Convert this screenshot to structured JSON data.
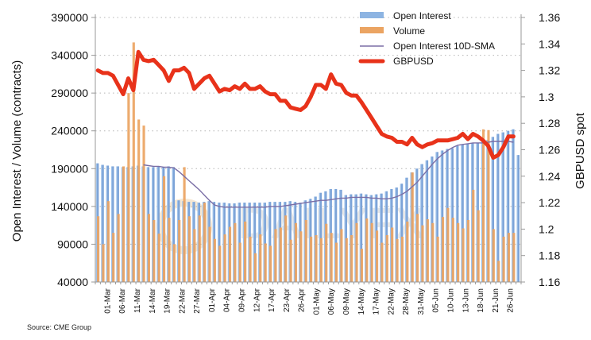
{
  "chart_data": {
    "type": "bar",
    "title": "",
    "source": "Source: CME Group",
    "ylabel": "Open Interest / Volume (contracts)",
    "y2label": "GBPUSD spot",
    "ylim": [
      40000,
      390000
    ],
    "y2lim": [
      1.16,
      1.36
    ],
    "yticks": [
      "390000",
      "340000",
      "290000",
      "240000",
      "190000",
      "140000",
      "90000",
      "40000"
    ],
    "y2ticks": [
      "1.36",
      "1.34",
      "1.32",
      "1.3",
      "1.28",
      "1.26",
      "1.24",
      "1.22",
      "1.2",
      "1.18",
      "1.16"
    ],
    "xtick_labels": [
      "01-Mar",
      "06-Mar",
      "11-Mar",
      "14-Mar",
      "19-Mar",
      "22-Mar",
      "27-Mar",
      "01-Apr",
      "04-Apr",
      "09-Apr",
      "12-Apr",
      "17-Apr",
      "23-Apr",
      "26-Apr",
      "01-May",
      "06-May",
      "09-May",
      "14-May",
      "17-May",
      "22-May",
      "28-May",
      "31-May",
      "05-Jun",
      "10-Jun",
      "13-Jun",
      "18-Jun",
      "21-Jun",
      "26-Jun"
    ],
    "total_slots": 84,
    "grid": true,
    "legend_position": "top-center",
    "legend": [
      {
        "name": "Open Interest",
        "kind": "bar",
        "color": "#8db4e2"
      },
      {
        "name": "Volume",
        "kind": "bar",
        "color": "#eba462"
      },
      {
        "name": "Open Interest 10D-SMA",
        "kind": "line",
        "color": "#7b6fa6"
      },
      {
        "name": "GBPUSD",
        "kind": "thick-line",
        "color": "#e8321a"
      }
    ],
    "series": [
      {
        "name": "Open Interest",
        "axis": "left",
        "values": [
          197000,
          195000,
          194000,
          193000,
          193000,
          192000,
          192000,
          193000,
          194000,
          193000,
          192000,
          192000,
          193000,
          192000,
          193000,
          192000,
          148000,
          147000,
          146000,
          146000,
          145000,
          146000,
          147000,
          146000,
          145000,
          145000,
          144000,
          144000,
          145000,
          145000,
          145000,
          145000,
          145000,
          145000,
          146000,
          146000,
          146000,
          146000,
          147000,
          146000,
          145000,
          148000,
          150000,
          153000,
          158000,
          160000,
          163000,
          163000,
          162000,
          155000,
          156000,
          156000,
          157000,
          156000,
          155000,
          156000,
          157000,
          160000,
          163000,
          165000,
          170000,
          178000,
          185000,
          190000,
          196000,
          201000,
          206000,
          212000,
          214000,
          216000,
          217000,
          220000,
          222000,
          223000,
          224000,
          224000,
          226000,
          228000,
          232000,
          236000,
          238000,
          240000,
          242000,
          208000
        ]
      },
      {
        "name": "Volume",
        "axis": "left",
        "values": [
          127000,
          90000,
          147000,
          105000,
          130000,
          193000,
          290000,
          357000,
          255000,
          247000,
          130000,
          122000,
          104000,
          180000,
          125000,
          90000,
          122000,
          192000,
          127000,
          110000,
          128000,
          145000,
          113000,
          97000,
          88000,
          103000,
          113000,
          118000,
          92000,
          120000,
          100000,
          78000,
          103000,
          91000,
          88000,
          110000,
          112000,
          128000,
          96000,
          118000,
          107000,
          122000,
          100000,
          102000,
          98000,
          117000,
          105000,
          92000,
          110000,
          98000,
          102000,
          118000,
          84000,
          124000,
          118000,
          108000,
          92000,
          102000,
          112000,
          97000,
          100000,
          120000,
          185000,
          130000,
          115000,
          123000,
          118000,
          100000,
          126000,
          138000,
          125000,
          118000,
          111000,
          122000,
          162000,
          135000,
          242000,
          241000,
          110000,
          68000,
          100000,
          105000,
          105000,
          0
        ]
      },
      {
        "name": "Open Interest 10D-SMA",
        "axis": "left",
        "values": [
          null,
          null,
          null,
          null,
          null,
          null,
          null,
          null,
          null,
          195000,
          194000,
          193000,
          193000,
          192000,
          192000,
          191000,
          186000,
          180000,
          174000,
          168000,
          162000,
          155000,
          148000,
          142000,
          140000,
          139000,
          139000,
          139000,
          139000,
          139000,
          139000,
          139000,
          139000,
          139000,
          140000,
          140000,
          140000,
          141000,
          142000,
          143000,
          144000,
          145000,
          146000,
          147000,
          148000,
          148000,
          149000,
          150000,
          151000,
          151000,
          152000,
          152000,
          152000,
          152000,
          151000,
          151000,
          150000,
          150000,
          151000,
          153000,
          156000,
          160000,
          166000,
          172000,
          180000,
          188000,
          196000,
          203000,
          209000,
          214000,
          218000,
          221000,
          222000,
          223000,
          224000,
          224000,
          224000,
          225000,
          226000,
          226000,
          226000,
          226000,
          225000,
          null
        ]
      },
      {
        "name": "GBPUSD",
        "axis": "right",
        "values": [
          1.32,
          1.318,
          1.318,
          1.316,
          1.309,
          1.302,
          1.314,
          1.305,
          1.334,
          1.328,
          1.327,
          1.328,
          1.324,
          1.32,
          1.312,
          1.32,
          1.32,
          1.322,
          1.318,
          1.306,
          1.31,
          1.314,
          1.316,
          1.31,
          1.304,
          1.306,
          1.305,
          1.308,
          1.306,
          1.31,
          1.306,
          1.306,
          1.308,
          1.304,
          1.302,
          1.302,
          1.297,
          1.297,
          1.292,
          1.291,
          1.29,
          1.293,
          1.3,
          1.309,
          1.309,
          1.306,
          1.317,
          1.31,
          1.309,
          1.303,
          1.301,
          1.301,
          1.296,
          1.29,
          1.284,
          1.278,
          1.272,
          1.27,
          1.269,
          1.266,
          1.266,
          1.264,
          1.269,
          1.264,
          1.262,
          1.264,
          1.265,
          1.267,
          1.267,
          1.267,
          1.268,
          1.269,
          1.272,
          1.268,
          1.272,
          1.27,
          1.267,
          1.263,
          1.254,
          1.256,
          1.262,
          1.27,
          1.27,
          null
        ]
      }
    ]
  }
}
